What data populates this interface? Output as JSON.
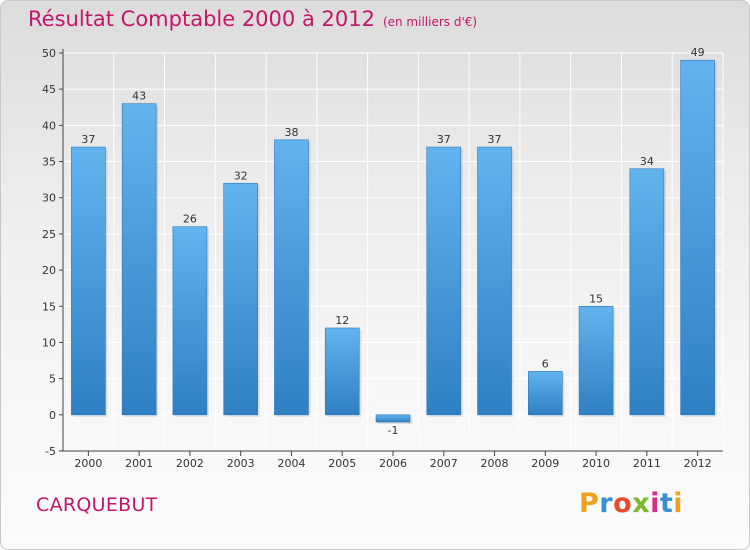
{
  "title": "Résultat Comptable 2000 à 2012",
  "subtitle": "(en milliers d'€)",
  "commune": "CARQUEBUT",
  "logo": {
    "text": "Proxiti",
    "letters": [
      "P",
      "r",
      "o",
      "x",
      "i",
      "t",
      "i"
    ],
    "colors": [
      "#f0a020",
      "#3a8fd0",
      "#e84a2a",
      "#7ab82e",
      "#d42e8a",
      "#3a8fd0",
      "#f0a020"
    ]
  },
  "colors": {
    "bar": "#3f97dc",
    "bar_light": "#63b3ee",
    "bar_dark": "#2f7fc4",
    "title": "#c3166b",
    "grid": "#ffffff"
  },
  "chart_data": {
    "type": "bar",
    "title": "Résultat Comptable 2000 à 2012",
    "xlabel": "",
    "ylabel": "",
    "ylim": [
      -5,
      50
    ],
    "yticks": [
      -5,
      0,
      5,
      10,
      15,
      20,
      25,
      30,
      35,
      40,
      45,
      50
    ],
    "grid": true,
    "categories": [
      "2000",
      "2001",
      "2002",
      "2003",
      "2004",
      "2005",
      "2006",
      "2007",
      "2008",
      "2009",
      "2010",
      "2011",
      "2012"
    ],
    "values": [
      37,
      43,
      26,
      32,
      38,
      12,
      -1,
      37,
      37,
      6,
      15,
      34,
      49
    ],
    "labels": [
      "37",
      "43",
      "26",
      "32",
      "38",
      "12",
      "-1",
      "37",
      "37",
      "6",
      "15",
      "34",
      "49"
    ]
  }
}
